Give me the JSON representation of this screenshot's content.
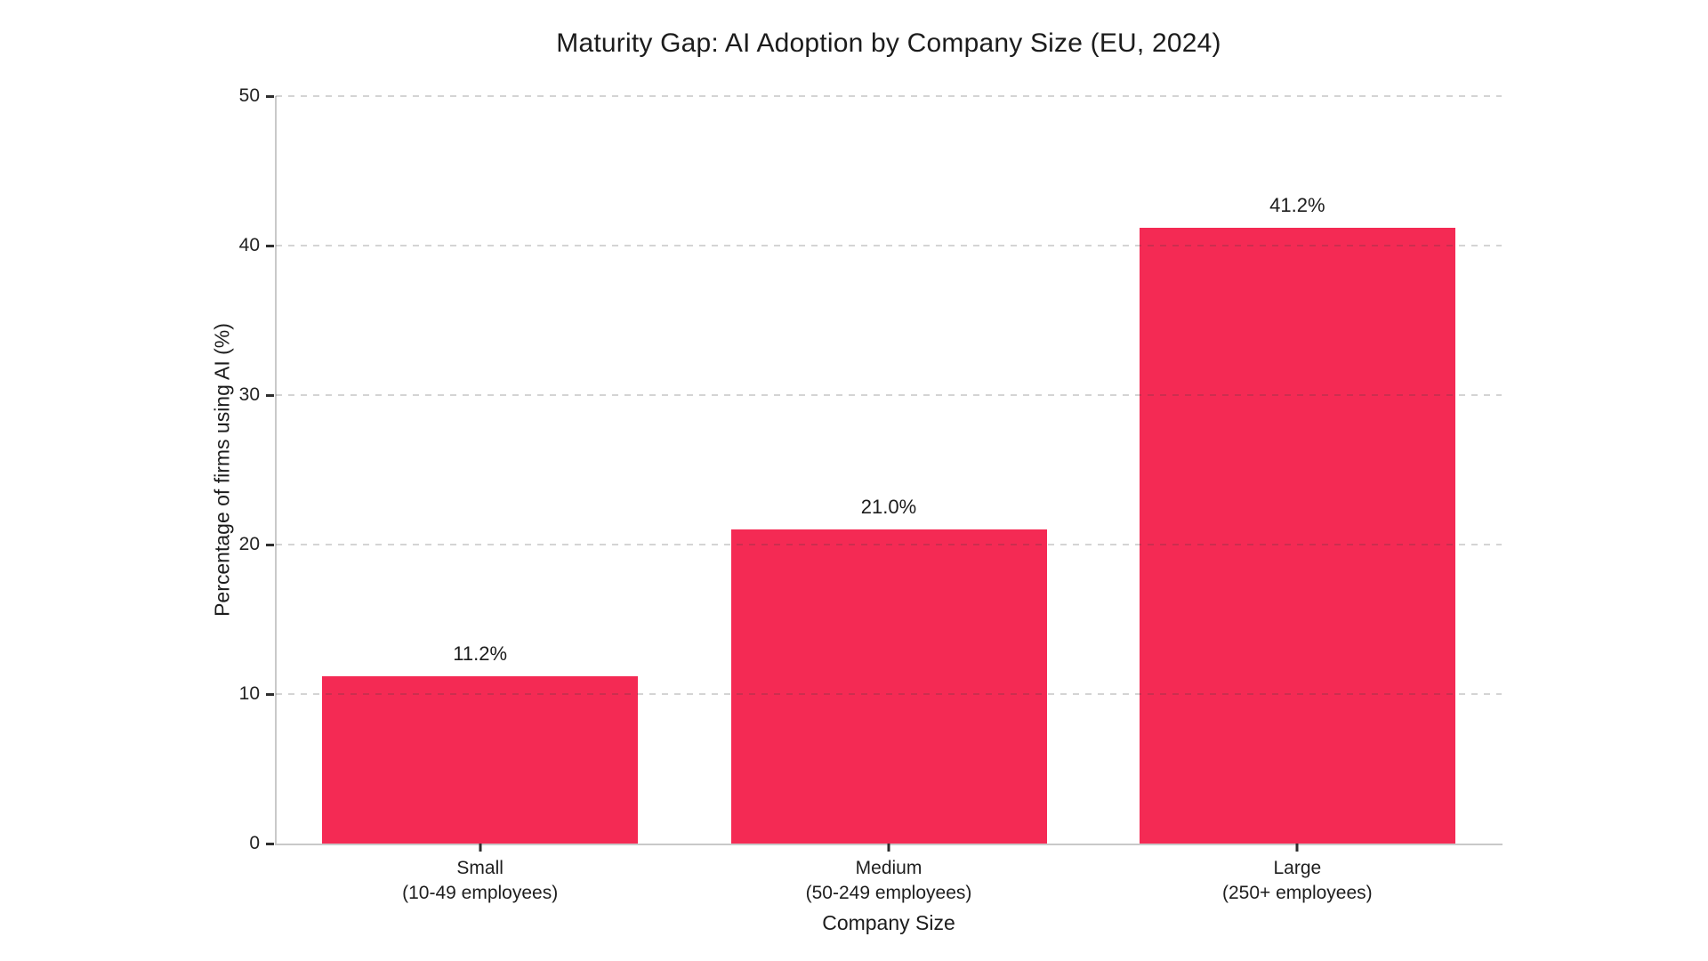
{
  "page": {
    "background_color": "#ffffff",
    "text_color": "#1c1c1c"
  },
  "chart_data": {
    "type": "bar",
    "title": "Maturity Gap: AI Adoption by Company Size (EU, 2024)",
    "xlabel": "Company Size",
    "ylabel": "Percentage of firms using AI (%)",
    "categories": [
      "Small\n(10-49 employees)",
      "Medium\n(50-249 employees)",
      "Large\n(250+ employees)"
    ],
    "values": [
      11.2,
      21.0,
      41.2
    ],
    "value_labels": [
      "11.2%",
      "21.0%",
      "41.2%"
    ],
    "ylim": [
      0,
      50
    ],
    "yticks": [
      0,
      10,
      20,
      30,
      40,
      50
    ],
    "grid": "horizontal dashed, drawn over bars",
    "legend": "none",
    "bar_color": "#f42a54",
    "spine_color": "#c9c9c9",
    "tick_color": "#2e2e2e"
  }
}
